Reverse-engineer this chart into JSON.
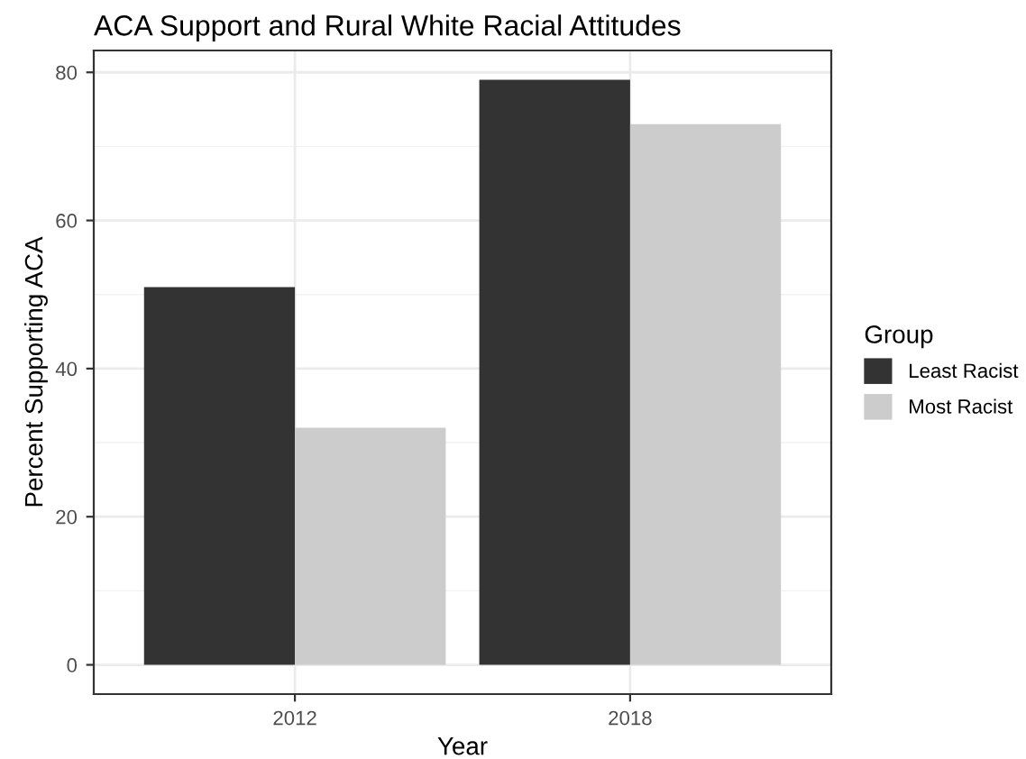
{
  "chart_data": {
    "type": "bar",
    "title": "ACA Support and Rural White Racial Attitudes",
    "xlabel": "Year",
    "ylabel": "Percent Supporting ACA",
    "legend_title": "Group",
    "categories": [
      "2012",
      "2018"
    ],
    "series": [
      {
        "name": "Least Racist",
        "color": "#333333",
        "values": [
          51,
          79
        ]
      },
      {
        "name": "Most Racist",
        "color": "#cccccc",
        "values": [
          32,
          73
        ]
      }
    ],
    "ylim": [
      -3.95,
      82.95
    ],
    "yticks": [
      0,
      20,
      40,
      60,
      80
    ],
    "grid": true,
    "legend": "right"
  }
}
